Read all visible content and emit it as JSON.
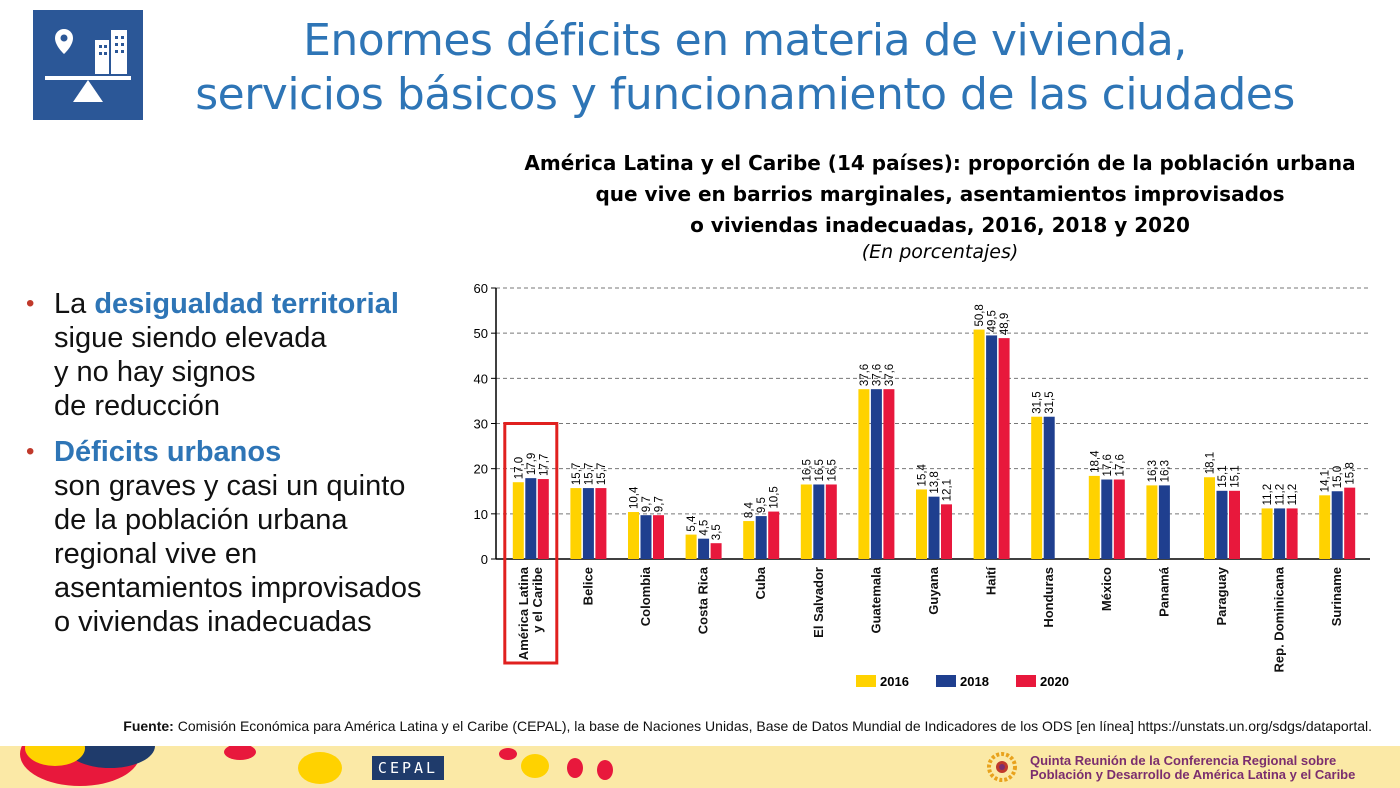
{
  "title_line1": "Enormes déficits en materia de vivienda,",
  "title_line2": "servicios básicos y funcionamiento de las ciudades",
  "icon_name": "city-balance-icon",
  "bullets": {
    "b1_pre": "La",
    "b1_hl": "desigualdad territorial",
    "b1_l2": "sigue siendo elevada",
    "b1_l3": "y no hay signos",
    "b1_l4": "de reducción",
    "b2_hl": "Déficits urbanos",
    "b2_l2": "son graves y casi un quinto",
    "b2_l3": "de la población urbana",
    "b2_l4": "regional vive en",
    "b2_l5": "asentamientos improvisados",
    "b2_l6": "o viviendas inadecuadas"
  },
  "source_label": "Fuente:",
  "source_text": "Comisión Económica para América Latina y el Caribe (CEPAL), la base de Naciones Unidas, Base de Datos Mundial de Indicadores de los ODS [en línea] https://unstats.un.org/sdgs/dataportal.",
  "footer": {
    "cepal": "CEPAL",
    "conf_line1": "Quinta Reunión de la Conferencia Regional sobre",
    "conf_line2": "Población y Desarrollo de América Latina y el Caribe"
  },
  "colors": {
    "title": "#2e75b6",
    "s2016": "#ffd200",
    "s2018": "#1f3f8f",
    "s2020": "#e8183c",
    "highlight_box": "#e0201f"
  },
  "chart_data": {
    "type": "bar",
    "title_line1": "América Latina y el Caribe (14 países): proporción de la población urbana",
    "title_line2": "que vive en barrios marginales, asentamientos improvisados",
    "title_line3": "o viviendas inadecuadas, 2016, 2018 y 2020",
    "subtitle": "(En porcentajes)",
    "ylim": [
      0,
      60
    ],
    "yticks": [
      0,
      10,
      20,
      30,
      40,
      50,
      60
    ],
    "grid": true,
    "legend_position": "bottom",
    "categories": [
      [
        "América Latina",
        "y el Caribe"
      ],
      [
        "Belice"
      ],
      [
        "Colombia"
      ],
      [
        "Costa Rica"
      ],
      [
        "Cuba"
      ],
      [
        "El Salvador"
      ],
      [
        "Guatemala"
      ],
      [
        "Guyana"
      ],
      [
        "Haití"
      ],
      [
        "Honduras"
      ],
      [
        "México"
      ],
      [
        "Panamá"
      ],
      [
        "Paraguay"
      ],
      [
        "Rep. Dominicana"
      ],
      [
        "Suriname"
      ]
    ],
    "highlight_category": 0,
    "series": [
      {
        "name": "2016",
        "values": [
          17.0,
          15.7,
          10.4,
          5.4,
          8.4,
          16.5,
          37.6,
          15.4,
          50.8,
          31.5,
          18.4,
          16.3,
          18.1,
          11.2,
          14.1
        ],
        "labels": [
          "17,0",
          "15,7",
          "10,4",
          "5,4",
          "8,4",
          "16,5",
          "37,6",
          "15,4",
          "50,8",
          "31,5",
          "18,4",
          "16,3",
          "18,1",
          "11,2",
          "14,1"
        ]
      },
      {
        "name": "2018",
        "values": [
          17.9,
          15.7,
          9.7,
          4.5,
          9.5,
          16.5,
          37.6,
          13.8,
          49.5,
          31.5,
          17.6,
          16.3,
          15.1,
          11.2,
          15.0
        ],
        "labels": [
          "17,9",
          "15,7",
          "9,7",
          "4,5",
          "9,5",
          "16,5",
          "37,6",
          "13,8",
          "49,5",
          "31,5",
          "17,6",
          "16,3",
          "15,1",
          "11,2",
          "15,0"
        ]
      },
      {
        "name": "2020",
        "values": [
          17.7,
          15.7,
          9.7,
          3.5,
          10.5,
          16.5,
          37.6,
          12.1,
          48.9,
          null,
          17.6,
          null,
          15.1,
          11.2,
          15.8
        ],
        "labels": [
          "17,7",
          "15,7",
          "9,7",
          "3,5",
          "10,5",
          "16,5",
          "37,6",
          "12,1",
          "48,9",
          "",
          "17,6",
          "",
          "15,1",
          "11,2",
          "15,8"
        ]
      }
    ]
  }
}
